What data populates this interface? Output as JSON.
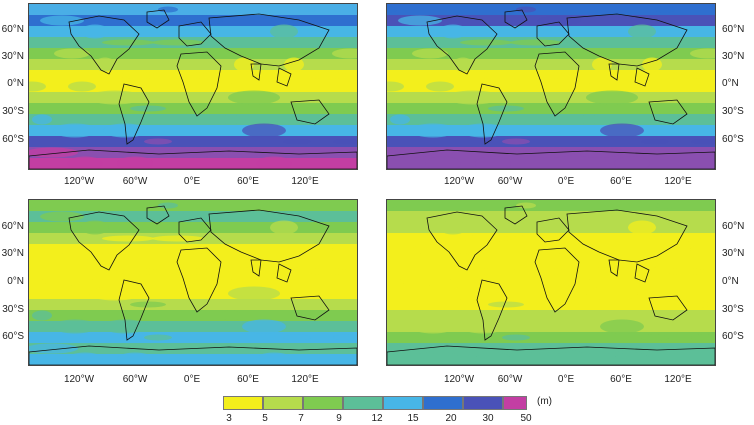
{
  "lat_labels": [
    "60°N",
    "30°N",
    "0°N",
    "30°S",
    "60°S"
  ],
  "lon_labels": [
    "120°W",
    "60°W",
    "0°E",
    "60°E",
    "120°E"
  ],
  "legend": {
    "unit": "(m)",
    "ticks": [
      "3",
      "5",
      "7",
      "9",
      "12",
      "15",
      "20",
      "30",
      "50"
    ],
    "colors": [
      "#f3ef1c",
      "#b6dc4c",
      "#7fcb50",
      "#5cbf98",
      "#47b6e6",
      "#2f6fcf",
      "#4a52b8",
      "#8a4fb0",
      "#c33ea3"
    ]
  },
  "panels": [
    {
      "id": "top-left",
      "bands": [
        "#4aaee6",
        "#2f6fcf",
        "#47b6e6",
        "#5cbf98",
        "#7fcb50",
        "#b6dc4c",
        "#f3ef1c",
        "#f3ef1c",
        "#b6dc4c",
        "#7fcb50",
        "#5cbf98",
        "#47b6e6",
        "#4a52b8",
        "#8a4fb0",
        "#c33ea3"
      ]
    },
    {
      "id": "top-right",
      "bands": [
        "#2f6fcf",
        "#4a52b8",
        "#47b6e6",
        "#5cbf98",
        "#7fcb50",
        "#b6dc4c",
        "#f3ef1c",
        "#f3ef1c",
        "#b6dc4c",
        "#7fcb50",
        "#5cbf98",
        "#47b6e6",
        "#4a52b8",
        "#8a4fb0",
        "#8a4fb0"
      ]
    },
    {
      "id": "bottom-left",
      "bands": [
        "#7fcb50",
        "#5cbf98",
        "#7fcb50",
        "#b6dc4c",
        "#f3ef1c",
        "#f3ef1c",
        "#f3ef1c",
        "#f3ef1c",
        "#f3ef1c",
        "#b6dc4c",
        "#7fcb50",
        "#5cbf98",
        "#47b6e6",
        "#5cbf98",
        "#47b6e6"
      ]
    },
    {
      "id": "bottom-right",
      "bands": [
        "#7fcb50",
        "#b6dc4c",
        "#b6dc4c",
        "#f3ef1c",
        "#f3ef1c",
        "#f3ef1c",
        "#f3ef1c",
        "#f3ef1c",
        "#f3ef1c",
        "#f3ef1c",
        "#b6dc4c",
        "#b6dc4c",
        "#7fcb50",
        "#5cbf98",
        "#5cbf98"
      ]
    }
  ]
}
